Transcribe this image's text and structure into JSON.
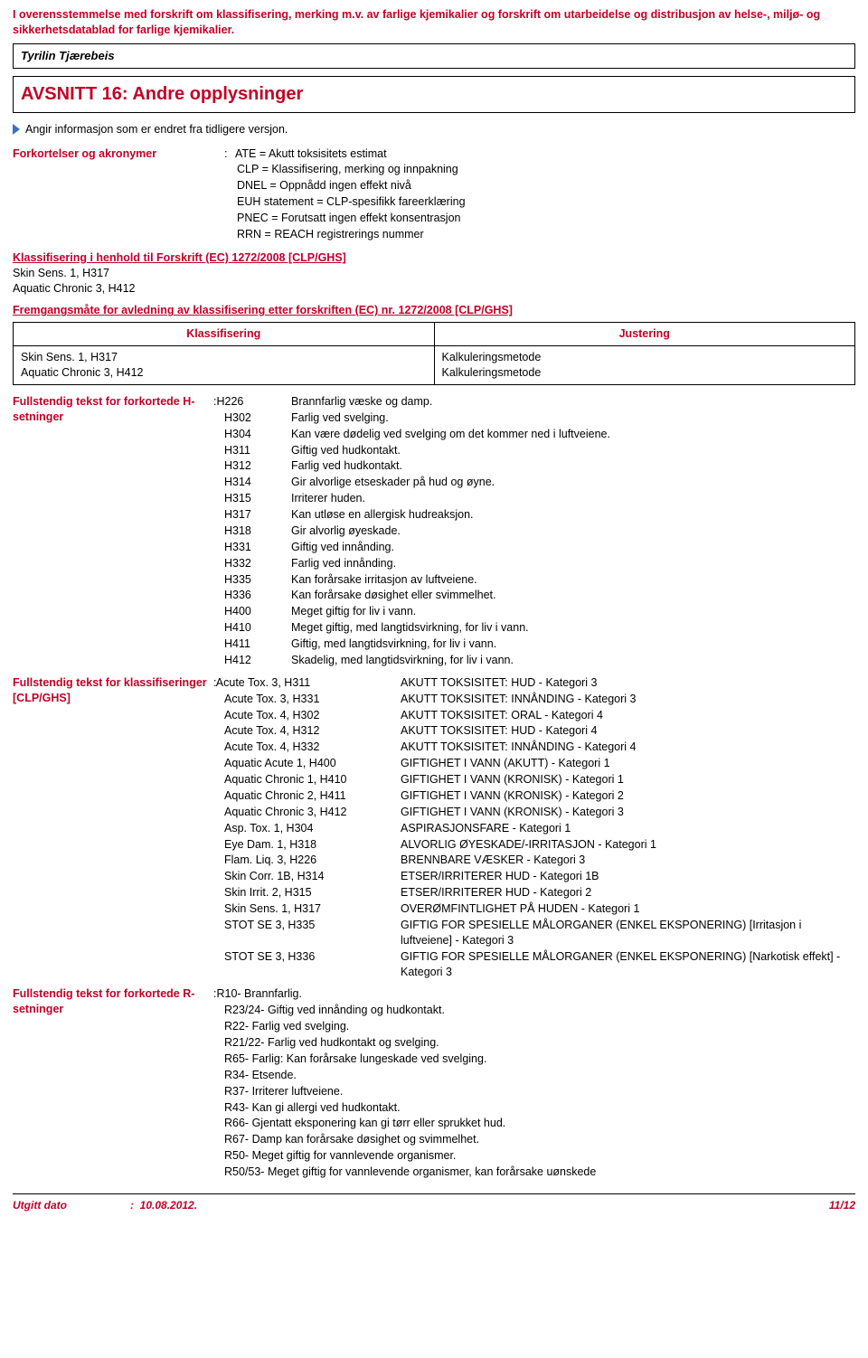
{
  "header": {
    "line1": "I overensstemmelse med forskrift om klassifisering, merking m.v. av farlige kjemikalier og forskrift om utarbeidelse og distribusjon av helse-, miljø- og sikkerhetsdatablad for farlige kjemikalier.",
    "product": "Tyrilin Tjærebeis"
  },
  "section_title": "AVSNITT 16: Andre opplysninger",
  "intro": "Angir informasjon som er endret fra tidligere versjon.",
  "ack": {
    "label": "Forkortelser og akronymer",
    "items": [
      "ATE = Akutt toksisitets estimat",
      "CLP = Klassifisering, merking og innpakning",
      "DNEL = Oppnådd ingen effekt nivå",
      "EUH statement = CLP-spesifikk fareerklæring",
      "PNEC = Forutsatt ingen effekt konsentrasjon",
      "RRN = REACH registrerings nummer"
    ]
  },
  "klass": {
    "heading": "Klassifisering i henhold til Forskrift (EC) 1272/2008 [CLP/GHS]",
    "l1": "Skin Sens. 1, H317",
    "l2": "Aquatic Chronic 3, H412"
  },
  "frem": {
    "heading": "Fremgangsmåte for avledning av klassifisering etter forskriften (EC) nr. 1272/2008 [CLP/GHS]",
    "th1": "Klassifisering",
    "th2": "Justering",
    "r1c1": "Skin Sens. 1, H317",
    "r1c2": "Kalkuleringsmetode",
    "r2c1": "Aquatic Chronic 3, H412",
    "r2c2": "Kalkuleringsmetode"
  },
  "hsent": {
    "label": "Fullstendig tekst for forkortede H-setninger",
    "rows": [
      [
        "H226",
        "Brannfarlig væske og damp."
      ],
      [
        "H302",
        "Farlig ved svelging."
      ],
      [
        "H304",
        "Kan være dødelig ved svelging om det kommer ned i luftveiene."
      ],
      [
        "H311",
        "Giftig ved hudkontakt."
      ],
      [
        "H312",
        "Farlig ved hudkontakt."
      ],
      [
        "H314",
        "Gir alvorlige etseskader på hud og øyne."
      ],
      [
        "H315",
        "Irriterer huden."
      ],
      [
        "H317",
        "Kan utløse en allergisk hudreaksjon."
      ],
      [
        "H318",
        "Gir alvorlig øyeskade."
      ],
      [
        "H331",
        "Giftig ved innånding."
      ],
      [
        "H332",
        "Farlig ved innånding."
      ],
      [
        "H335",
        "Kan forårsake irritasjon av luftveiene."
      ],
      [
        "H336",
        "Kan forårsake døsighet eller svimmelhet."
      ],
      [
        "H400",
        "Meget giftig for liv i vann."
      ],
      [
        "H410",
        "Meget giftig, med langtidsvirkning, for liv i vann."
      ],
      [
        "H411",
        "Giftig, med langtidsvirkning, for liv i vann."
      ],
      [
        "H412",
        "Skadelig, med langtidsvirkning, for liv i vann."
      ]
    ]
  },
  "clpghs": {
    "label": "Fullstendig tekst for klassifiseringer [CLP/GHS]",
    "rows": [
      [
        "Acute Tox. 3, H311",
        "AKUTT TOKSISITET: HUD - Kategori 3"
      ],
      [
        "Acute Tox. 3, H331",
        "AKUTT TOKSISITET: INNÅNDING - Kategori 3"
      ],
      [
        "Acute Tox. 4, H302",
        "AKUTT TOKSISITET: ORAL - Kategori 4"
      ],
      [
        "Acute Tox. 4, H312",
        "AKUTT TOKSISITET: HUD - Kategori 4"
      ],
      [
        "Acute Tox. 4, H332",
        "AKUTT TOKSISITET: INNÅNDING - Kategori 4"
      ],
      [
        "Aquatic Acute 1, H400",
        "GIFTIGHET I VANN (AKUTT) - Kategori 1"
      ],
      [
        "Aquatic Chronic 1, H410",
        "GIFTIGHET I VANN (KRONISK) - Kategori 1"
      ],
      [
        "Aquatic Chronic 2, H411",
        "GIFTIGHET I VANN (KRONISK) - Kategori 2"
      ],
      [
        "Aquatic Chronic 3, H412",
        "GIFTIGHET I VANN (KRONISK) - Kategori 3"
      ],
      [
        "Asp. Tox. 1, H304",
        "ASPIRASJONSFARE - Kategori 1"
      ],
      [
        "Eye Dam. 1, H318",
        "ALVORLIG ØYESKADE/-IRRITASJON - Kategori 1"
      ],
      [
        "Flam. Liq. 3, H226",
        "BRENNBARE VÆSKER - Kategori 3"
      ],
      [
        "Skin Corr. 1B, H314",
        "ETSER/IRRITERER HUD - Kategori 1B"
      ],
      [
        "Skin Irrit. 2, H315",
        "ETSER/IRRITERER HUD - Kategori 2"
      ],
      [
        "Skin Sens. 1, H317",
        "OVERØMFINTLIGHET PÅ HUDEN - Kategori 1"
      ],
      [
        "STOT SE 3, H335",
        "GIFTIG FOR SPESIELLE MÅLORGANER (ENKEL EKSPONERING) [Irritasjon i luftveiene]  - Kategori 3"
      ],
      [
        "STOT SE 3, H336",
        "GIFTIG FOR SPESIELLE MÅLORGANER (ENKEL EKSPONERING) [Narkotisk effekt]  - Kategori 3"
      ]
    ]
  },
  "rsent": {
    "label": "Fullstendig tekst for forkortede R-setninger",
    "rows": [
      "R10- Brannfarlig.",
      "R23/24- Giftig ved innånding og hudkontakt.",
      "R22- Farlig ved svelging.",
      "R21/22- Farlig ved hudkontakt og svelging.",
      "R65- Farlig: Kan forårsake lungeskade ved svelging.",
      "R34- Etsende.",
      "R37- Irriterer luftveiene.",
      "R43- Kan gi allergi ved hudkontakt.",
      "R66- Gjentatt eksponering kan gi tørr eller sprukket hud.",
      "R67- Damp kan forårsake døsighet og svimmelhet.",
      "R50- Meget giftig for vannlevende organismer.",
      "R50/53- Meget giftig for vannlevende organismer, kan forårsake uønskede"
    ]
  },
  "footer": {
    "left_label": "Utgitt dato",
    "date": "10.08.2012.",
    "page": "11/12"
  }
}
